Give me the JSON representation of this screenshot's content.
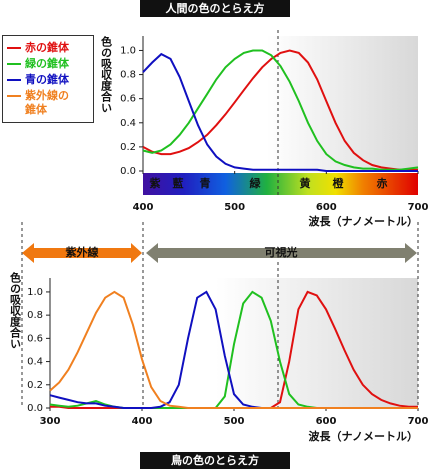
{
  "header": {
    "title": "人間の色のとらえ方"
  },
  "footer": {
    "title": "鳥の色のとらえ方"
  },
  "chart_data": [
    {
      "type": "line",
      "y_label": "色の吸収度合い",
      "x_label": "波長（ナノメートル）",
      "spectrum_labels": [
        "紫",
        "藍",
        "青",
        "緑",
        "黄",
        "橙",
        "赤"
      ],
      "x": [
        400,
        410,
        420,
        430,
        440,
        450,
        460,
        470,
        480,
        490,
        500,
        510,
        520,
        530,
        540,
        550,
        560,
        570,
        580,
        590,
        600,
        610,
        620,
        630,
        640,
        650,
        660,
        670,
        680,
        690,
        700
      ],
      "series": [
        {
          "color": "#e01010",
          "values": [
            0.2,
            0.16,
            0.14,
            0.14,
            0.16,
            0.19,
            0.24,
            0.3,
            0.38,
            0.47,
            0.57,
            0.67,
            0.77,
            0.86,
            0.93,
            0.98,
            1.0,
            0.98,
            0.9,
            0.76,
            0.58,
            0.4,
            0.25,
            0.15,
            0.09,
            0.05,
            0.03,
            0.02,
            0.01,
            0.01,
            0.01
          ]
        },
        {
          "color": "#20c020",
          "values": [
            0.17,
            0.15,
            0.17,
            0.22,
            0.3,
            0.4,
            0.52,
            0.64,
            0.76,
            0.86,
            0.93,
            0.98,
            1.0,
            1.0,
            0.96,
            0.87,
            0.74,
            0.58,
            0.4,
            0.25,
            0.14,
            0.08,
            0.05,
            0.03,
            0.02,
            0.02,
            0.01,
            0.01,
            0.01,
            0.02,
            0.03
          ]
        },
        {
          "color": "#1010c0",
          "values": [
            0.82,
            0.9,
            0.97,
            0.93,
            0.78,
            0.58,
            0.38,
            0.22,
            0.12,
            0.06,
            0.03,
            0.02,
            0.01,
            0.01,
            0.01,
            0.01,
            0.01,
            0.01,
            0.01,
            0.01,
            0,
            0,
            0,
            0,
            0,
            0,
            0,
            0,
            0,
            0,
            0
          ]
        }
      ],
      "xlim": [
        400,
        700
      ],
      "xticks": [
        400,
        500,
        600,
        700
      ],
      "ylim": [
        0,
        1.12
      ],
      "yticks": [
        {
          "value": 0,
          "label": "0.0"
        },
        0.2,
        0.4,
        0.6,
        0.8,
        {
          "value": 1,
          "label": "1.0"
        }
      ]
    },
    {
      "type": "line",
      "y_label": "色の吸収度合い",
      "x_label": "波長（ナノメートル）",
      "ranges": [
        {
          "label": "紫外線",
          "color": "#f07810"
        },
        {
          "label": "可視光",
          "color": "#808070"
        }
      ],
      "x": [
        300,
        310,
        320,
        330,
        340,
        350,
        360,
        370,
        380,
        390,
        400,
        410,
        420,
        430,
        440,
        450,
        460,
        470,
        480,
        490,
        500,
        510,
        520,
        530,
        540,
        550,
        560,
        570,
        580,
        590,
        600,
        610,
        620,
        630,
        640,
        650,
        660,
        670,
        680,
        690,
        700
      ],
      "series": [
        {
          "name": "赤の錐体",
          "color": "#e01010",
          "values": [
            0.01,
            0.01,
            0,
            0,
            0,
            0,
            0,
            0,
            0,
            0,
            0,
            0,
            0,
            0,
            0,
            0,
            0,
            0,
            0,
            0,
            0,
            0,
            0,
            0,
            0,
            0.05,
            0.4,
            0.85,
            1.0,
            0.97,
            0.85,
            0.68,
            0.5,
            0.33,
            0.2,
            0.12,
            0.07,
            0.04,
            0.02,
            0.01,
            0.01
          ]
        },
        {
          "name": "緑の錐体",
          "color": "#20c020",
          "values": [
            0.03,
            0.02,
            0.01,
            0.02,
            0.04,
            0.06,
            0.03,
            0.01,
            0,
            0,
            0,
            0,
            0,
            0,
            0,
            0,
            0,
            0,
            0,
            0.1,
            0.55,
            0.9,
            1.0,
            0.95,
            0.75,
            0.4,
            0.12,
            0.03,
            0.01,
            0,
            0,
            0,
            0,
            0,
            0,
            0,
            0,
            0,
            0,
            0,
            0
          ]
        },
        {
          "name": "青の錐体",
          "color": "#1010c0",
          "values": [
            0.11,
            0.09,
            0.07,
            0.05,
            0.04,
            0.04,
            0.02,
            0.01,
            0,
            0,
            0,
            0,
            0.01,
            0.05,
            0.2,
            0.6,
            0.95,
            1.0,
            0.85,
            0.45,
            0.12,
            0.03,
            0.01,
            0,
            0,
            0,
            0,
            0,
            0,
            0,
            0,
            0,
            0,
            0,
            0,
            0,
            0,
            0,
            0,
            0,
            0
          ]
        },
        {
          "name": "紫外線の錐体",
          "color": "#f08020",
          "values": [
            0.15,
            0.22,
            0.33,
            0.48,
            0.65,
            0.82,
            0.95,
            1.0,
            0.95,
            0.72,
            0.42,
            0.18,
            0.06,
            0.02,
            0.01,
            0,
            0,
            0,
            0,
            0,
            0,
            0,
            0,
            0,
            0,
            0,
            0,
            0,
            0,
            0,
            0,
            0,
            0,
            0,
            0,
            0,
            0,
            0,
            0,
            0,
            0
          ]
        }
      ],
      "xlim": [
        300,
        700
      ],
      "xticks": [
        300,
        400,
        500,
        600,
        700
      ],
      "ylim": [
        0,
        1.12
      ],
      "yticks": [
        {
          "value": 0,
          "label": "0.0"
        },
        0.2,
        0.4,
        0.6,
        0.8,
        {
          "value": 1,
          "label": "1.0"
        }
      ]
    }
  ]
}
